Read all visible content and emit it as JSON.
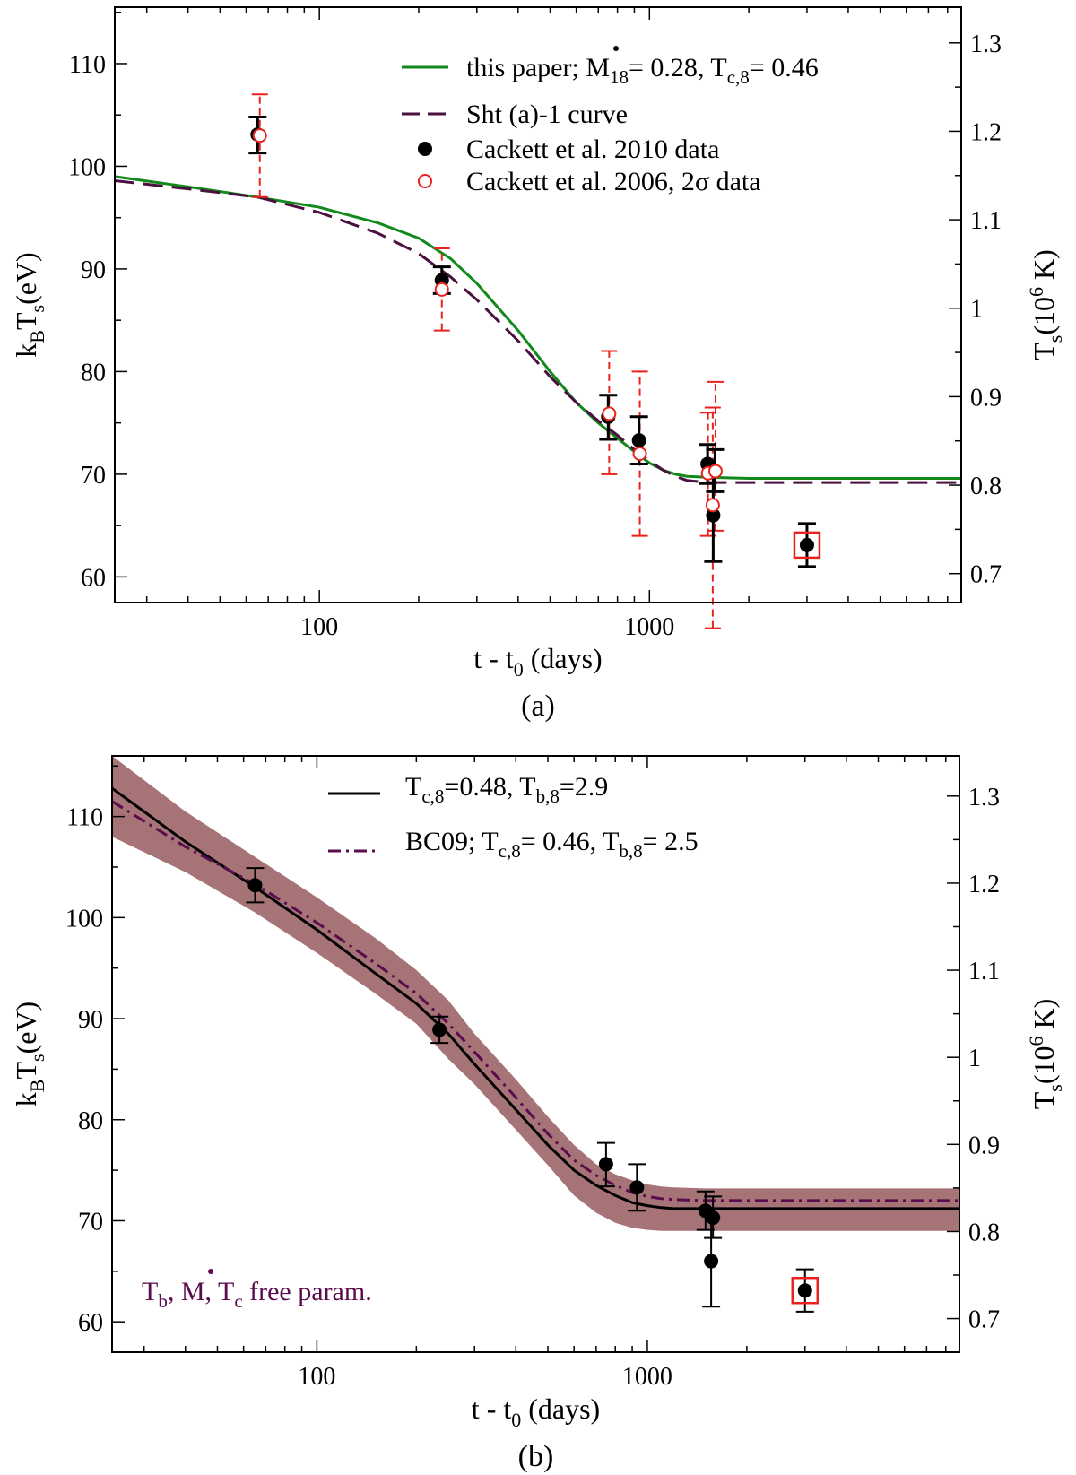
{
  "colors": {
    "green_model": "#12891a",
    "purple_model": "#4a1040",
    "red_data": "#e8231e",
    "black": "#000000",
    "band": "#a67376",
    "annotation": "#5b0c4e"
  },
  "chart_data": [
    {
      "panel": "(a)",
      "type": "scatter",
      "xscale": "log",
      "xlim": [
        24,
        8800
      ],
      "xticks": [
        "100",
        "1000"
      ],
      "ylim": [
        57.5,
        115.5
      ],
      "yticks": [
        "60",
        "70",
        "80",
        "90",
        "100",
        "110"
      ],
      "y2ticks": [
        "0.7",
        "0.8",
        "0.9",
        "1",
        "1.1",
        "1.2",
        "1.3"
      ],
      "y2_values": [
        0.7,
        0.8,
        0.9,
        1.0,
        1.1,
        1.2,
        1.3
      ],
      "xlabel": {
        "pre": "t - t",
        "sub": "0",
        "post": " (days)"
      },
      "ylabel": {
        "k": "k",
        "ksub": "B",
        "T": "T",
        "Tsub": "s",
        "unit": "(eV)"
      },
      "y2label": {
        "T": "T",
        "Tsub": "s",
        "pre": "(10",
        "sup": "6",
        "post": " K)"
      },
      "legend": {
        "green_text": {
          "pre": "this paper; ",
          "M": "M",
          "msub": "18",
          "mid": "= 0.28, T",
          "tsub": "c,8",
          "post": "= 0.46"
        },
        "purple_text": "Sht (a)-1 curve",
        "black_text": "Cackett et al. 2010 data",
        "red_text": {
          "pre": "Cackett et al. 2006, 2",
          "sigma": "σ",
          "post": " data"
        }
      },
      "series": [
        {
          "style": "green-solid",
          "x": [
            24,
            40,
            65,
            100,
            150,
            200,
            250,
            300,
            400,
            500,
            600,
            700,
            800,
            900,
            1000,
            1100,
            1200,
            1300,
            1500,
            2000,
            3000,
            5000,
            8800
          ],
          "y": [
            99.0,
            98.0,
            97.0,
            96.0,
            94.5,
            93.0,
            91.0,
            88.6,
            84.0,
            80.0,
            77.0,
            75.0,
            73.5,
            72.2,
            71.1,
            70.4,
            70.0,
            69.8,
            69.7,
            69.6,
            69.6,
            69.6,
            69.6
          ]
        },
        {
          "style": "purple-dashed",
          "x": [
            24,
            40,
            65,
            100,
            150,
            200,
            250,
            300,
            400,
            500,
            600,
            700,
            800,
            900,
            1000,
            1100,
            1200,
            1300,
            1500,
            2000,
            3000,
            5000,
            8800
          ],
          "y": [
            98.6,
            97.8,
            97.0,
            95.5,
            93.5,
            91.5,
            89.2,
            87.0,
            83.0,
            79.5,
            77.0,
            75.2,
            73.8,
            72.4,
            71.3,
            70.4,
            69.8,
            69.4,
            69.2,
            69.2,
            69.2,
            69.2,
            69.2
          ]
        }
      ],
      "points_2010": [
        {
          "x": 65,
          "y": 103.1,
          "lo": 101.3,
          "hi": 104.8
        },
        {
          "x": 235,
          "y": 88.9,
          "lo": 87.6,
          "hi": 90.2
        },
        {
          "x": 750,
          "y": 75.6,
          "lo": 73.4,
          "hi": 77.7
        },
        {
          "x": 930,
          "y": 73.3,
          "lo": 71.0,
          "hi": 75.6
        },
        {
          "x": 1500,
          "y": 71.0,
          "lo": 69.1,
          "hi": 72.9
        },
        {
          "x": 1560,
          "y": 66.0,
          "lo": 61.5,
          "hi": 70.4
        },
        {
          "x": 1580,
          "y": 70.3,
          "lo": 68.3,
          "hi": 72.4
        },
        {
          "x": 3000,
          "y": 63.1,
          "lo": 61.0,
          "hi": 65.2
        }
      ],
      "points_2006": [
        {
          "x": 66,
          "y": 103.0,
          "lo": 97.0,
          "hi": 107.0
        },
        {
          "x": 235,
          "y": 88.0,
          "lo": 84.0,
          "hi": 92.0
        },
        {
          "x": 755,
          "y": 75.9,
          "lo": 70.0,
          "hi": 82.0
        },
        {
          "x": 935,
          "y": 72.0,
          "lo": 64.0,
          "hi": 80.0
        },
        {
          "x": 1505,
          "y": 70.1,
          "lo": 64.0,
          "hi": 76.0
        },
        {
          "x": 1555,
          "y": 67.0,
          "lo": 55.0,
          "hi": 76.5
        },
        {
          "x": 1585,
          "y": 70.3,
          "lo": 64.5,
          "hi": 79.0
        }
      ],
      "boxed_point": {
        "x": 3000,
        "y": 63.1
      }
    },
    {
      "panel": "(b)",
      "type": "scatter",
      "xscale": "log",
      "xlim": [
        24,
        8800
      ],
      "xticks": [
        "100",
        "1000"
      ],
      "ylim": [
        57,
        116
      ],
      "yticks": [
        "60",
        "70",
        "80",
        "90",
        "100",
        "110"
      ],
      "y2ticks": [
        "0.7",
        "0.8",
        "0.9",
        "1",
        "1.1",
        "1.2",
        "1.3"
      ],
      "y2_values": [
        0.7,
        0.8,
        0.9,
        1.0,
        1.1,
        1.2,
        1.3
      ],
      "xlabel": {
        "pre": "t - t",
        "sub": "0",
        "post": " (days)"
      },
      "ylabel": {
        "k": "k",
        "ksub": "B",
        "T": "T",
        "Tsub": "s",
        "unit": "(eV)"
      },
      "y2label": {
        "T": "T",
        "Tsub": "s",
        "pre": "(10",
        "sup": "6",
        "post": " K)"
      },
      "legend": {
        "black_text": {
          "pre": "T",
          "sub1": "c,8",
          "mid": "=0.48, T",
          "sub2": "b,8",
          "post": "=2.9"
        },
        "purple_text": {
          "pre": "BC09; T",
          "sub1": "c,8",
          "mid": "= 0.46, T",
          "sub2": "b,8",
          "post": "= 2.5"
        }
      },
      "annotation": {
        "T1": "T",
        "s1": "b",
        "c1": ", ",
        "M": "M",
        "c2": ", T",
        "s2": "c",
        "post": " free param."
      },
      "band": {
        "x": [
          24,
          40,
          65,
          100,
          150,
          200,
          250,
          300,
          400,
          500,
          600,
          700,
          800,
          900,
          1000,
          1100,
          1200,
          1500,
          2000,
          3000,
          5000,
          8800
        ],
        "lo": [
          108.0,
          104.5,
          100.5,
          96.5,
          92.5,
          89.5,
          86.0,
          83.5,
          79.0,
          75.5,
          72.5,
          70.8,
          69.8,
          69.3,
          69.1,
          69.0,
          69.0,
          69.0,
          69.0,
          69.0,
          69.0,
          69.0
        ],
        "hi": [
          116.0,
          110.5,
          106.0,
          102.0,
          98.0,
          94.8,
          91.8,
          88.5,
          84.0,
          80.3,
          77.5,
          75.6,
          74.6,
          74.0,
          73.6,
          73.4,
          73.3,
          73.2,
          73.2,
          73.2,
          73.2,
          73.2
        ]
      },
      "series": [
        {
          "style": "black-solid",
          "x": [
            24,
            40,
            65,
            100,
            150,
            200,
            250,
            300,
            400,
            500,
            600,
            700,
            800,
            900,
            1000,
            1100,
            1200,
            1500,
            2000,
            3000,
            5000,
            8800
          ],
          "y": [
            112.8,
            107.5,
            103.0,
            98.8,
            94.5,
            91.5,
            88.5,
            85.5,
            81.0,
            77.5,
            75.0,
            73.5,
            72.5,
            71.8,
            71.5,
            71.3,
            71.2,
            71.2,
            71.2,
            71.2,
            71.2,
            71.2
          ]
        },
        {
          "style": "purple-dashdot",
          "x": [
            24,
            40,
            65,
            100,
            150,
            200,
            250,
            300,
            400,
            500,
            600,
            700,
            800,
            900,
            1000,
            1100,
            1200,
            1500,
            2000,
            3000,
            5000,
            8800
          ],
          "y": [
            111.5,
            107.0,
            103.3,
            99.5,
            95.5,
            92.5,
            89.5,
            86.7,
            82.2,
            78.6,
            76.0,
            74.5,
            73.5,
            72.8,
            72.4,
            72.2,
            72.1,
            72.0,
            72.0,
            72.0,
            72.0,
            72.0
          ]
        }
      ],
      "points_2010": [
        {
          "x": 65,
          "y": 103.2,
          "lo": 101.5,
          "hi": 104.9
        },
        {
          "x": 235,
          "y": 88.9,
          "lo": 87.6,
          "hi": 90.2
        },
        {
          "x": 750,
          "y": 75.6,
          "lo": 73.4,
          "hi": 77.7
        },
        {
          "x": 930,
          "y": 73.3,
          "lo": 71.0,
          "hi": 75.6
        },
        {
          "x": 1500,
          "y": 71.0,
          "lo": 69.1,
          "hi": 72.9
        },
        {
          "x": 1560,
          "y": 66.0,
          "lo": 61.5,
          "hi": 70.4
        },
        {
          "x": 1580,
          "y": 70.3,
          "lo": 68.3,
          "hi": 72.4
        },
        {
          "x": 3000,
          "y": 63.1,
          "lo": 61.0,
          "hi": 65.2
        }
      ],
      "boxed_point": {
        "x": 3000,
        "y": 63.1
      }
    }
  ]
}
